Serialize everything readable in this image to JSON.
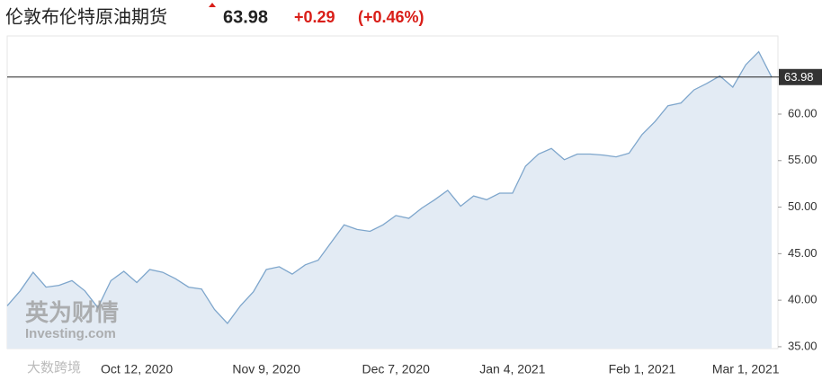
{
  "header": {
    "title": "伦敦布伦特原油期货",
    "price": "63.98",
    "change": "+0.29",
    "change_pct": "(+0.46%)"
  },
  "watermarks": [
    "英为财情",
    "Investing.com",
    "大数跨境"
  ],
  "chart_data": {
    "type": "area",
    "color": "#7ea6cc",
    "fill": "#e3ebf4",
    "categories": [
      null,
      null,
      null,
      null,
      null,
      null,
      null,
      null,
      null,
      null,
      "Oct 12, 2020",
      null,
      null,
      null,
      null,
      null,
      null,
      null,
      null,
      null,
      "Nov 9, 2020",
      null,
      null,
      null,
      null,
      null,
      null,
      null,
      null,
      null,
      "Dec 7, 2020",
      null,
      null,
      null,
      null,
      null,
      null,
      null,
      null,
      "Jan 4, 2021",
      null,
      null,
      null,
      null,
      null,
      null,
      null,
      null,
      null,
      "Feb 1, 2021",
      null,
      null,
      null,
      null,
      null,
      null,
      null,
      "Mar 1, 2021",
      null,
      null
    ],
    "values": [
      39.4,
      41.0,
      43.0,
      41.4,
      41.6,
      42.1,
      41.0,
      39.2,
      42.1,
      43.1,
      41.9,
      43.3,
      43.0,
      42.3,
      41.4,
      41.2,
      39.0,
      37.5,
      39.4,
      40.9,
      43.3,
      43.6,
      42.8,
      43.8,
      44.3,
      46.2,
      48.1,
      47.6,
      47.4,
      48.1,
      49.1,
      48.8,
      49.9,
      50.8,
      51.8,
      50.1,
      51.2,
      50.8,
      51.5,
      51.5,
      54.4,
      55.7,
      56.3,
      55.1,
      55.7,
      55.7,
      55.6,
      55.4,
      55.8,
      57.8,
      59.2,
      60.9,
      61.2,
      62.6,
      63.3,
      64.1,
      62.9,
      65.3,
      66.7,
      63.98
    ],
    "ylim": [
      34.8,
      68.4
    ],
    "yticks": [
      {
        "value": 35,
        "label": "35.00"
      },
      {
        "value": 40,
        "label": "40.00"
      },
      {
        "value": 45,
        "label": "45.00"
      },
      {
        "value": 50,
        "label": "50.00"
      },
      {
        "value": 55,
        "label": "55.00"
      },
      {
        "value": 60,
        "label": "60.00"
      }
    ]
  }
}
